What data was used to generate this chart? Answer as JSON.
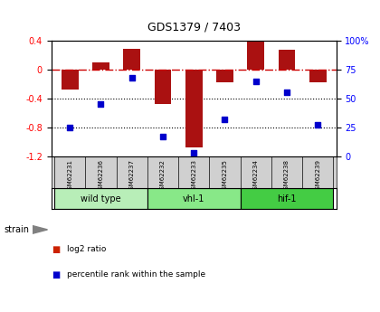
{
  "title": "GDS1379 / 7403",
  "samples": [
    "GSM62231",
    "GSM62236",
    "GSM62237",
    "GSM62232",
    "GSM62233",
    "GSM62235",
    "GSM62234",
    "GSM62238",
    "GSM62239"
  ],
  "log2_ratio": [
    -0.28,
    0.1,
    0.28,
    -0.48,
    -1.08,
    -0.18,
    0.39,
    0.27,
    -0.18
  ],
  "percentile_rank": [
    25,
    45,
    68,
    17,
    3,
    32,
    65,
    55,
    27
  ],
  "groups": [
    {
      "label": "wild type",
      "start": 0,
      "end": 3,
      "color": "#b8eeb8"
    },
    {
      "label": "vhl-1",
      "start": 3,
      "end": 6,
      "color": "#88e888"
    },
    {
      "label": "hif-1",
      "start": 6,
      "end": 9,
      "color": "#44cc44"
    }
  ],
  "ylim_left": [
    -1.2,
    0.4
  ],
  "ylim_right": [
    0,
    100
  ],
  "yticks_left": [
    -1.2,
    -0.8,
    -0.4,
    0.0,
    0.4
  ],
  "yticks_right": [
    0,
    25,
    50,
    75,
    100
  ],
  "ytick_labels_right": [
    "0",
    "25",
    "50",
    "75",
    "100%"
  ],
  "bar_color": "#aa1111",
  "dot_color": "#0000cc",
  "hline_color": "#cc0000",
  "legend_items": [
    "log2 ratio",
    "percentile rank within the sample"
  ],
  "legend_colors": [
    "#cc2200",
    "#0000cc"
  ],
  "strain_label": "strain",
  "background_color": "#ffffff",
  "label_bg": "#d0d0d0"
}
